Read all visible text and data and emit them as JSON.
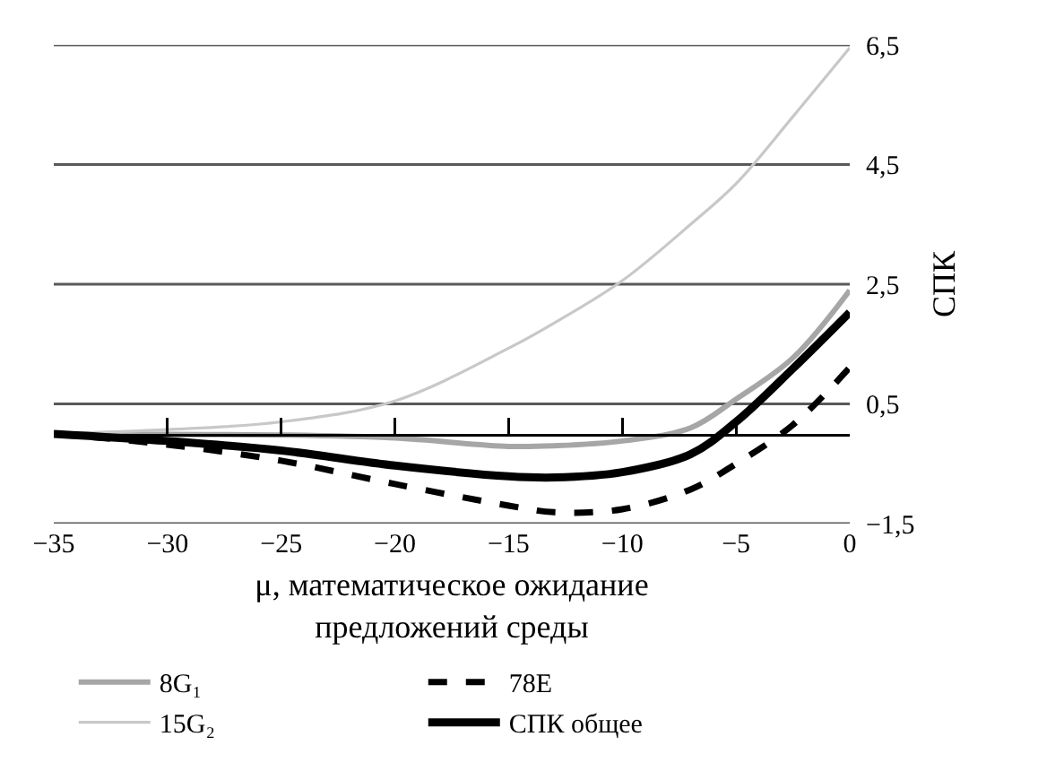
{
  "chart_data": {
    "type": "line",
    "xlabel": "μ, математическое ожидание\nпредложений среды",
    "ylabel": "СПК",
    "x": [
      -35,
      -30,
      -25,
      -20,
      -15,
      -13,
      -10,
      -7,
      -5,
      -2.5,
      0
    ],
    "xlim": [
      -35,
      0
    ],
    "xticks": [
      {
        "value": -35,
        "label": "−35"
      },
      {
        "value": -30,
        "label": "−30"
      },
      {
        "value": -25,
        "label": "−25"
      },
      {
        "value": -20,
        "label": "−20"
      },
      {
        "value": -15,
        "label": "−15"
      },
      {
        "value": -10,
        "label": "−10"
      },
      {
        "value": -5,
        "label": "−5"
      },
      0
    ],
    "ylim": [
      -1.5,
      6.5
    ],
    "yticks": [
      {
        "value": -1.5,
        "label": "−1,5"
      },
      {
        "value": 0.5,
        "label": "0,5"
      },
      {
        "value": 2.5,
        "label": "2,5"
      },
      {
        "value": 4.5,
        "label": "4,5"
      },
      {
        "value": 6.5,
        "label": "6,5"
      }
    ],
    "grid": "y",
    "legend": "bottom",
    "marker": "none",
    "series": [
      {
        "name": "8G₁",
        "color": "#a6a6a6",
        "line_style": "solid",
        "values": [
          0,
          -0.01,
          -0.02,
          -0.07,
          -0.21,
          -0.2,
          -0.12,
          0.1,
          0.58,
          1.27,
          2.4
        ]
      },
      {
        "name": "78E",
        "color": "#000000",
        "line_style": "dashed",
        "values": [
          0,
          -0.18,
          -0.45,
          -0.84,
          -1.2,
          -1.31,
          -1.26,
          -0.93,
          -0.5,
          0.15,
          1.11
        ]
      },
      {
        "name": "15G₂",
        "color": "#c8c8c8",
        "line_style": "solid",
        "values": [
          0,
          0.07,
          0.2,
          0.55,
          1.43,
          1.85,
          2.56,
          3.5,
          4.18,
          5.3,
          6.45
        ]
      },
      {
        "name": "СПК общее",
        "color": "#000000",
        "line_style": "solid",
        "values": [
          0,
          -0.12,
          -0.28,
          -0.53,
          -0.71,
          -0.73,
          -0.64,
          -0.34,
          0.2,
          1.09,
          2.03
        ]
      }
    ]
  }
}
